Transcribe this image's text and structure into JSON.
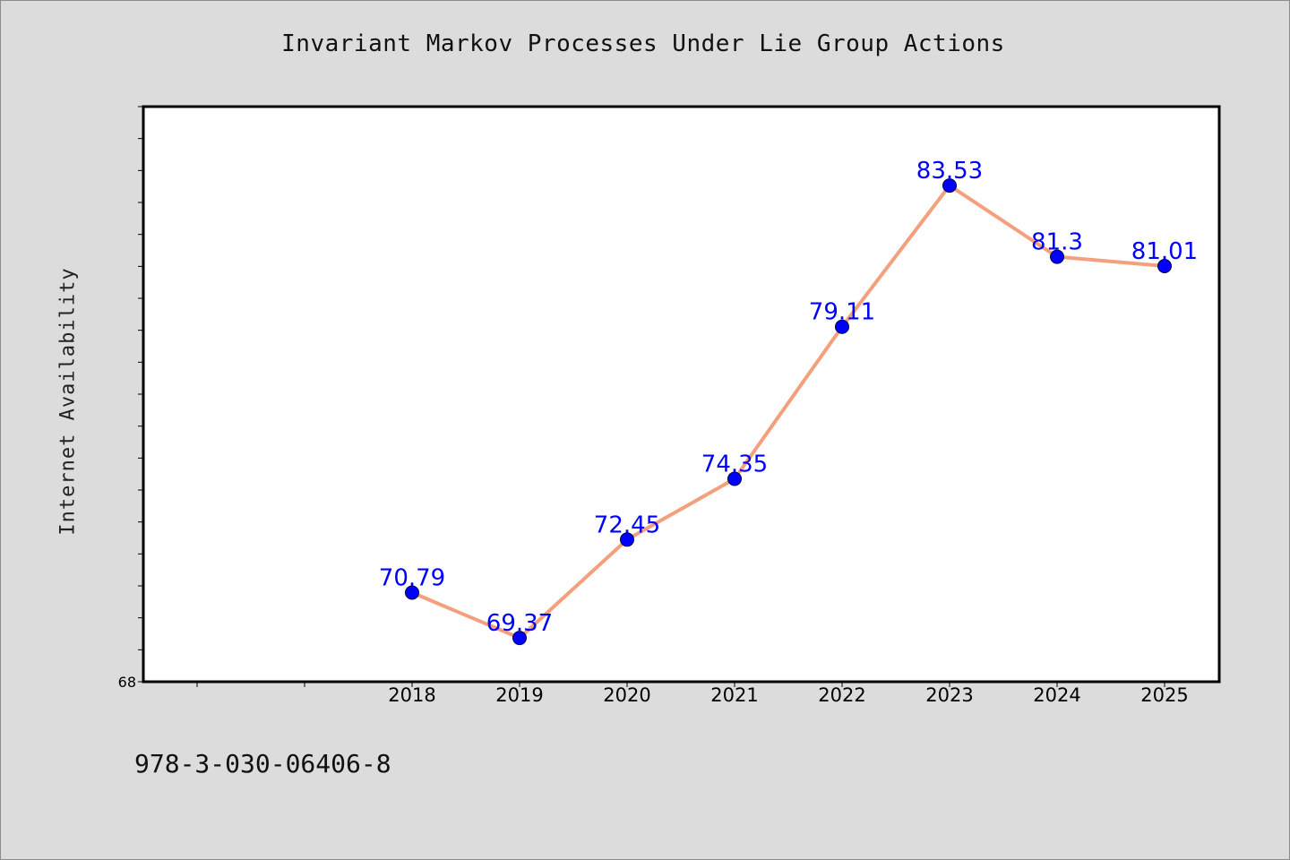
{
  "footer": {
    "code": "978-3-030-06406-8"
  },
  "chart_data": {
    "type": "line",
    "title": "Invariant Markov Processes Under Lie Group Actions",
    "xlabel": "",
    "ylabel": "Internet Availability",
    "x": [
      "2018",
      "2019",
      "2020",
      "2021",
      "2022",
      "2023",
      "2024",
      "2025"
    ],
    "series": [
      {
        "values": [
          70.79,
          69.37,
          72.45,
          74.35,
          79.11,
          83.53,
          81.3,
          81.01
        ]
      }
    ],
    "point_labels": [
      "70.79",
      "69.37",
      "72.45",
      "74.35",
      "79.11",
      "83.53",
      "81.3",
      "81.01"
    ],
    "y_tick_labels": [
      "68"
    ],
    "ylim": [
      68,
      86
    ],
    "grid": false,
    "colors": {
      "line": "#f4a07c",
      "marker": "#0000ff",
      "label": "#0000ff",
      "plot_bg": "#ffffff",
      "page_bg": "#dcdcdc"
    }
  }
}
